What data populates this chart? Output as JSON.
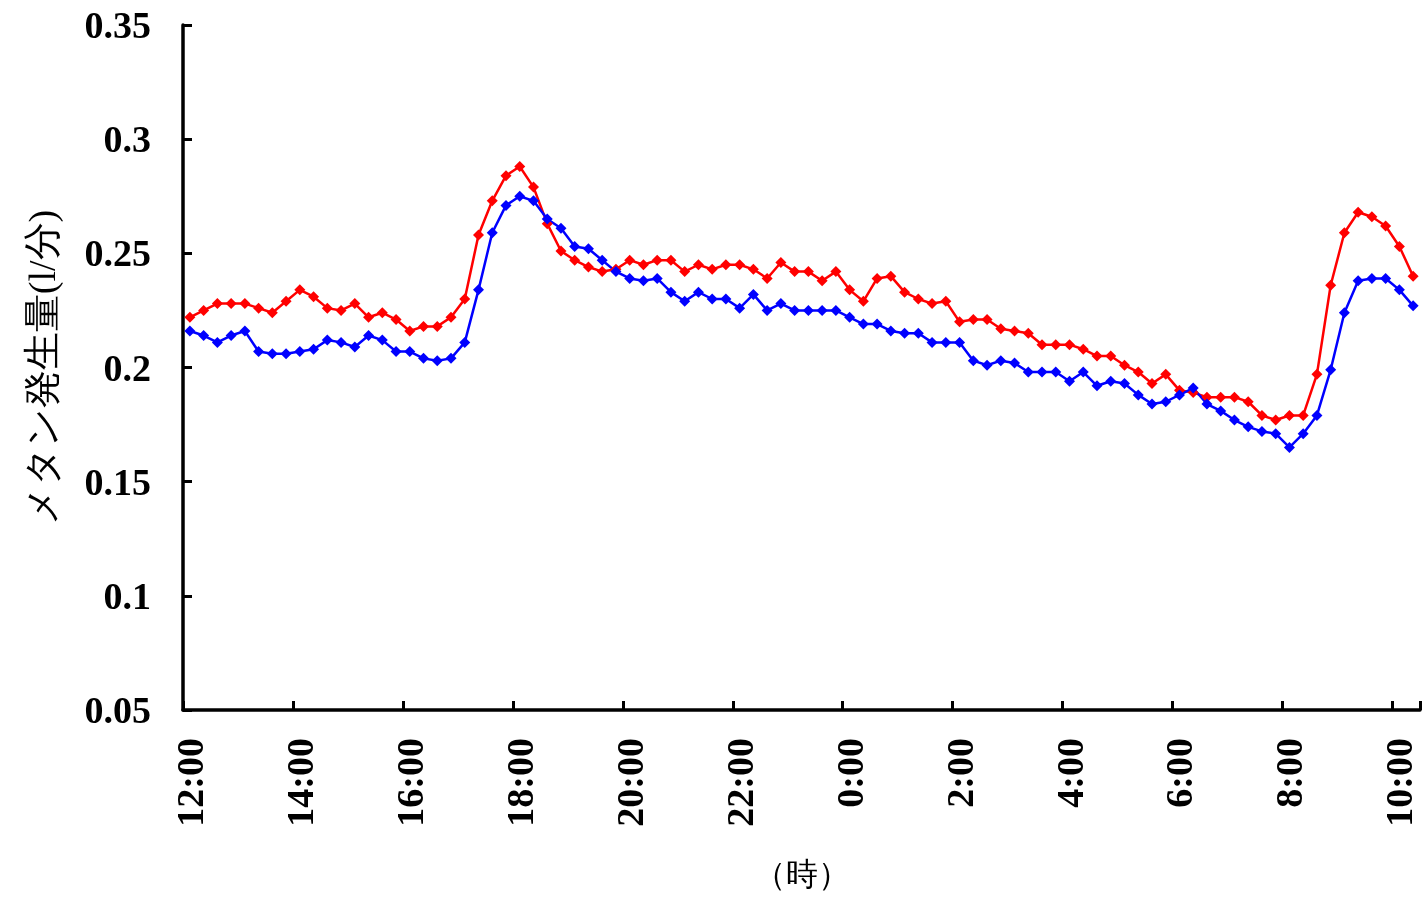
{
  "chart_data": {
    "type": "line",
    "xlabel": "（時）",
    "ylabel": "メタン発生量(l/分)",
    "categories": [
      "12:00",
      null,
      null,
      null,
      null,
      null,
      null,
      null,
      "14:00",
      null,
      null,
      null,
      null,
      null,
      null,
      null,
      "16:00",
      null,
      null,
      null,
      null,
      null,
      null,
      null,
      "18:00",
      null,
      null,
      null,
      null,
      null,
      null,
      null,
      "20:00",
      null,
      null,
      null,
      null,
      null,
      null,
      null,
      "22:00",
      null,
      null,
      null,
      null,
      null,
      null,
      null,
      "0:00",
      null,
      null,
      null,
      null,
      null,
      null,
      null,
      "2:00",
      null,
      null,
      null,
      null,
      null,
      null,
      null,
      "4:00",
      null,
      null,
      null,
      null,
      null,
      null,
      null,
      "6:00",
      null,
      null,
      null,
      null,
      null,
      null,
      null,
      "8:00",
      null,
      null,
      null,
      null,
      null,
      null,
      null,
      "10:00",
      null
    ],
    "series": [
      {
        "color": "#ff0000",
        "values": [
          0.222,
          0.225,
          0.228,
          0.228,
          0.228,
          0.226,
          0.224,
          0.229,
          0.234,
          0.231,
          0.226,
          0.225,
          0.228,
          0.222,
          0.224,
          0.221,
          0.216,
          0.218,
          0.218,
          0.222,
          0.23,
          0.258,
          0.273,
          0.284,
          0.288,
          0.279,
          0.263,
          0.251,
          0.247,
          0.244,
          0.242,
          0.243,
          0.247,
          0.245,
          0.247,
          0.247,
          0.242,
          0.245,
          0.243,
          0.245,
          0.245,
          0.243,
          0.239,
          0.246,
          0.242,
          0.242,
          0.238,
          0.242,
          0.234,
          0.229,
          0.239,
          0.24,
          0.233,
          0.23,
          0.228,
          0.229,
          0.22,
          0.221,
          0.221,
          0.217,
          0.216,
          0.215,
          0.21,
          0.21,
          0.21,
          0.208,
          0.205,
          0.205,
          0.201,
          0.198,
          0.193,
          0.197,
          0.19,
          0.189,
          0.187,
          0.187,
          0.187,
          0.185,
          0.179,
          0.177,
          0.179,
          0.179,
          0.197,
          0.236,
          0.259,
          0.268,
          0.266,
          0.262,
          0.253,
          0.24
        ]
      },
      {
        "color": "#0000ff",
        "values": [
          0.216,
          0.214,
          0.211,
          0.214,
          0.216,
          0.207,
          0.206,
          0.206,
          0.207,
          0.208,
          0.212,
          0.211,
          0.209,
          0.214,
          0.212,
          0.207,
          0.207,
          0.204,
          0.203,
          0.204,
          0.211,
          0.234,
          0.259,
          0.271,
          0.275,
          0.273,
          0.265,
          0.261,
          0.253,
          0.252,
          0.247,
          0.242,
          0.239,
          0.238,
          0.239,
          0.233,
          0.229,
          0.233,
          0.23,
          0.23,
          0.226,
          0.232,
          0.225,
          0.228,
          0.225,
          0.225,
          0.225,
          0.225,
          0.222,
          0.219,
          0.219,
          0.216,
          0.215,
          0.215,
          0.211,
          0.211,
          0.211,
          0.203,
          0.201,
          0.203,
          0.202,
          0.198,
          0.198,
          0.198,
          0.194,
          0.198,
          0.192,
          0.194,
          0.193,
          0.188,
          0.184,
          0.185,
          0.188,
          0.191,
          0.184,
          0.181,
          0.177,
          0.174,
          0.172,
          0.171,
          0.165,
          0.171,
          0.179,
          0.199,
          0.224,
          0.238,
          0.239,
          0.239,
          0.234,
          0.227
        ]
      }
    ],
    "ylim": [
      0.05,
      0.35
    ],
    "yticks": [
      0.05,
      0.1,
      0.15,
      0.2,
      0.25,
      0.3,
      0.35
    ],
    "grid": false,
    "marker": "diamond",
    "line_style": "solid"
  }
}
